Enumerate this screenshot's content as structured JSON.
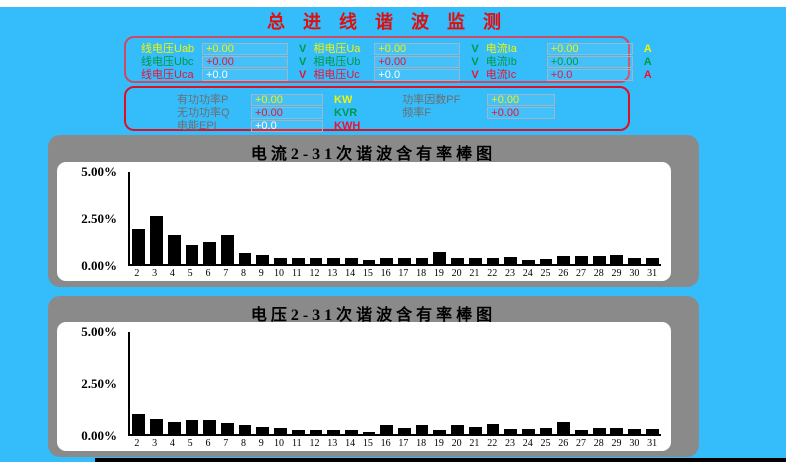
{
  "page": {
    "title": "总进线谐波监测"
  },
  "colors": {
    "background": "#35BCFA",
    "top_strip": "#FFFFFF",
    "title_red": "#E00E0E",
    "panel_border_pink": "#CC4A63",
    "panel_border_red": "#DD1122",
    "chart_panel_gray": "#8A8A8A",
    "plot_white": "#FFFFFF",
    "bar_black": "#000000",
    "yellow": "#F4F400",
    "green": "#009944",
    "red": "#EE1133",
    "white": "#FFFFFF",
    "gray": "#6E6E6E"
  },
  "measurement_panel": {
    "groups": [
      {
        "name": "line-voltage",
        "rows": [
          {
            "label": "线电压Uab",
            "value": "+0.00",
            "unit": "V",
            "label_color": "yellow",
            "value_color": "yellow",
            "unit_color": "green"
          },
          {
            "label": "线电压Ubc",
            "value": "+0.00",
            "unit": "V",
            "label_color": "green",
            "value_color": "red",
            "unit_color": "green"
          },
          {
            "label": "线电压Uca",
            "value": "+0.0",
            "unit": "V",
            "label_color": "red",
            "value_color": "white",
            "unit_color": "red"
          }
        ]
      },
      {
        "name": "phase-voltage",
        "rows": [
          {
            "label": "相电压Ua",
            "value": "+0.00",
            "unit": "V",
            "label_color": "yellow",
            "value_color": "yellow",
            "unit_color": "green"
          },
          {
            "label": "相电压Ub",
            "value": "+0.00",
            "unit": "V",
            "label_color": "green",
            "value_color": "red",
            "unit_color": "green"
          },
          {
            "label": "相电压Uc",
            "value": "+0.0",
            "unit": "V",
            "label_color": "red",
            "value_color": "white",
            "unit_color": "red"
          }
        ]
      },
      {
        "name": "current",
        "rows": [
          {
            "label": "电流Ia",
            "value": "+0.00",
            "unit": "A",
            "label_color": "yellow",
            "value_color": "yellow",
            "unit_color": "yellow"
          },
          {
            "label": "电流Ib",
            "value": "+0.00",
            "unit": "A",
            "label_color": "green",
            "value_color": "green",
            "unit_color": "green"
          },
          {
            "label": "电流Ic",
            "value": "+0.0",
            "unit": "A",
            "label_color": "red",
            "value_color": "red",
            "unit_color": "red"
          }
        ]
      }
    ]
  },
  "power_panel": {
    "left_rows": [
      {
        "label": "有功功率P",
        "value": "+0.00",
        "unit": "KW",
        "label_color": "gray",
        "value_color": "yellow",
        "unit_color": "yellow"
      },
      {
        "label": "无功功率Q",
        "value": "+0.00",
        "unit": "KVR",
        "label_color": "gray",
        "value_color": "red",
        "unit_color": "green"
      },
      {
        "label": "电能EPI",
        "value": "+0.0",
        "unit": "KWH",
        "label_color": "gray",
        "value_color": "white",
        "unit_color": "red"
      }
    ],
    "right_rows": [
      {
        "label": "功率因数PF",
        "value": "+0.00",
        "label_color": "gray",
        "value_color": "yellow"
      },
      {
        "label": "频率F",
        "value": "+0.00",
        "label_color": "gray",
        "value_color": "red"
      }
    ]
  },
  "chart_data": [
    {
      "type": "bar",
      "name": "current-harmonics",
      "title": "电流2-31次谐波含有率棒图",
      "categories": [
        "2",
        "3",
        "4",
        "5",
        "6",
        "7",
        "8",
        "9",
        "10",
        "11",
        "12",
        "13",
        "14",
        "15",
        "16",
        "17",
        "18",
        "19",
        "20",
        "21",
        "22",
        "23",
        "24",
        "25",
        "26",
        "27",
        "28",
        "29",
        "30",
        "31"
      ],
      "values": [
        1.9,
        2.6,
        1.55,
        1.05,
        1.2,
        1.55,
        0.6,
        0.5,
        0.3,
        0.3,
        0.3,
        0.3,
        0.3,
        0.2,
        0.3,
        0.3,
        0.3,
        0.65,
        0.35,
        0.35,
        0.35,
        0.4,
        0.2,
        0.25,
        0.45,
        0.45,
        0.45,
        0.5,
        0.3,
        0.35
      ],
      "xlabel": "",
      "ylabel": "",
      "ylim": [
        0,
        5
      ],
      "yticks": [
        "5.00%",
        "2.50%",
        "0.00%"
      ],
      "grid": false,
      "bar_color": "#000000"
    },
    {
      "type": "bar",
      "name": "voltage-harmonics",
      "title": "电压2-31次谐波含有率棒图",
      "categories": [
        "2",
        "3",
        "4",
        "5",
        "6",
        "7",
        "8",
        "9",
        "10",
        "11",
        "12",
        "13",
        "14",
        "15",
        "16",
        "17",
        "18",
        "19",
        "20",
        "21",
        "22",
        "23",
        "24",
        "25",
        "26",
        "27",
        "28",
        "29",
        "30",
        "31"
      ],
      "values": [
        1.0,
        0.75,
        0.6,
        0.7,
        0.7,
        0.55,
        0.45,
        0.35,
        0.3,
        0.22,
        0.22,
        0.2,
        0.2,
        0.1,
        0.45,
        0.3,
        0.45,
        0.2,
        0.45,
        0.35,
        0.5,
        0.25,
        0.25,
        0.3,
        0.6,
        0.2,
        0.3,
        0.3,
        0.25,
        0.25
      ],
      "xlabel": "",
      "ylabel": "",
      "ylim": [
        0,
        5
      ],
      "yticks": [
        "5.00%",
        "2.50%",
        "0.00%"
      ],
      "grid": false,
      "bar_color": "#000000"
    }
  ]
}
